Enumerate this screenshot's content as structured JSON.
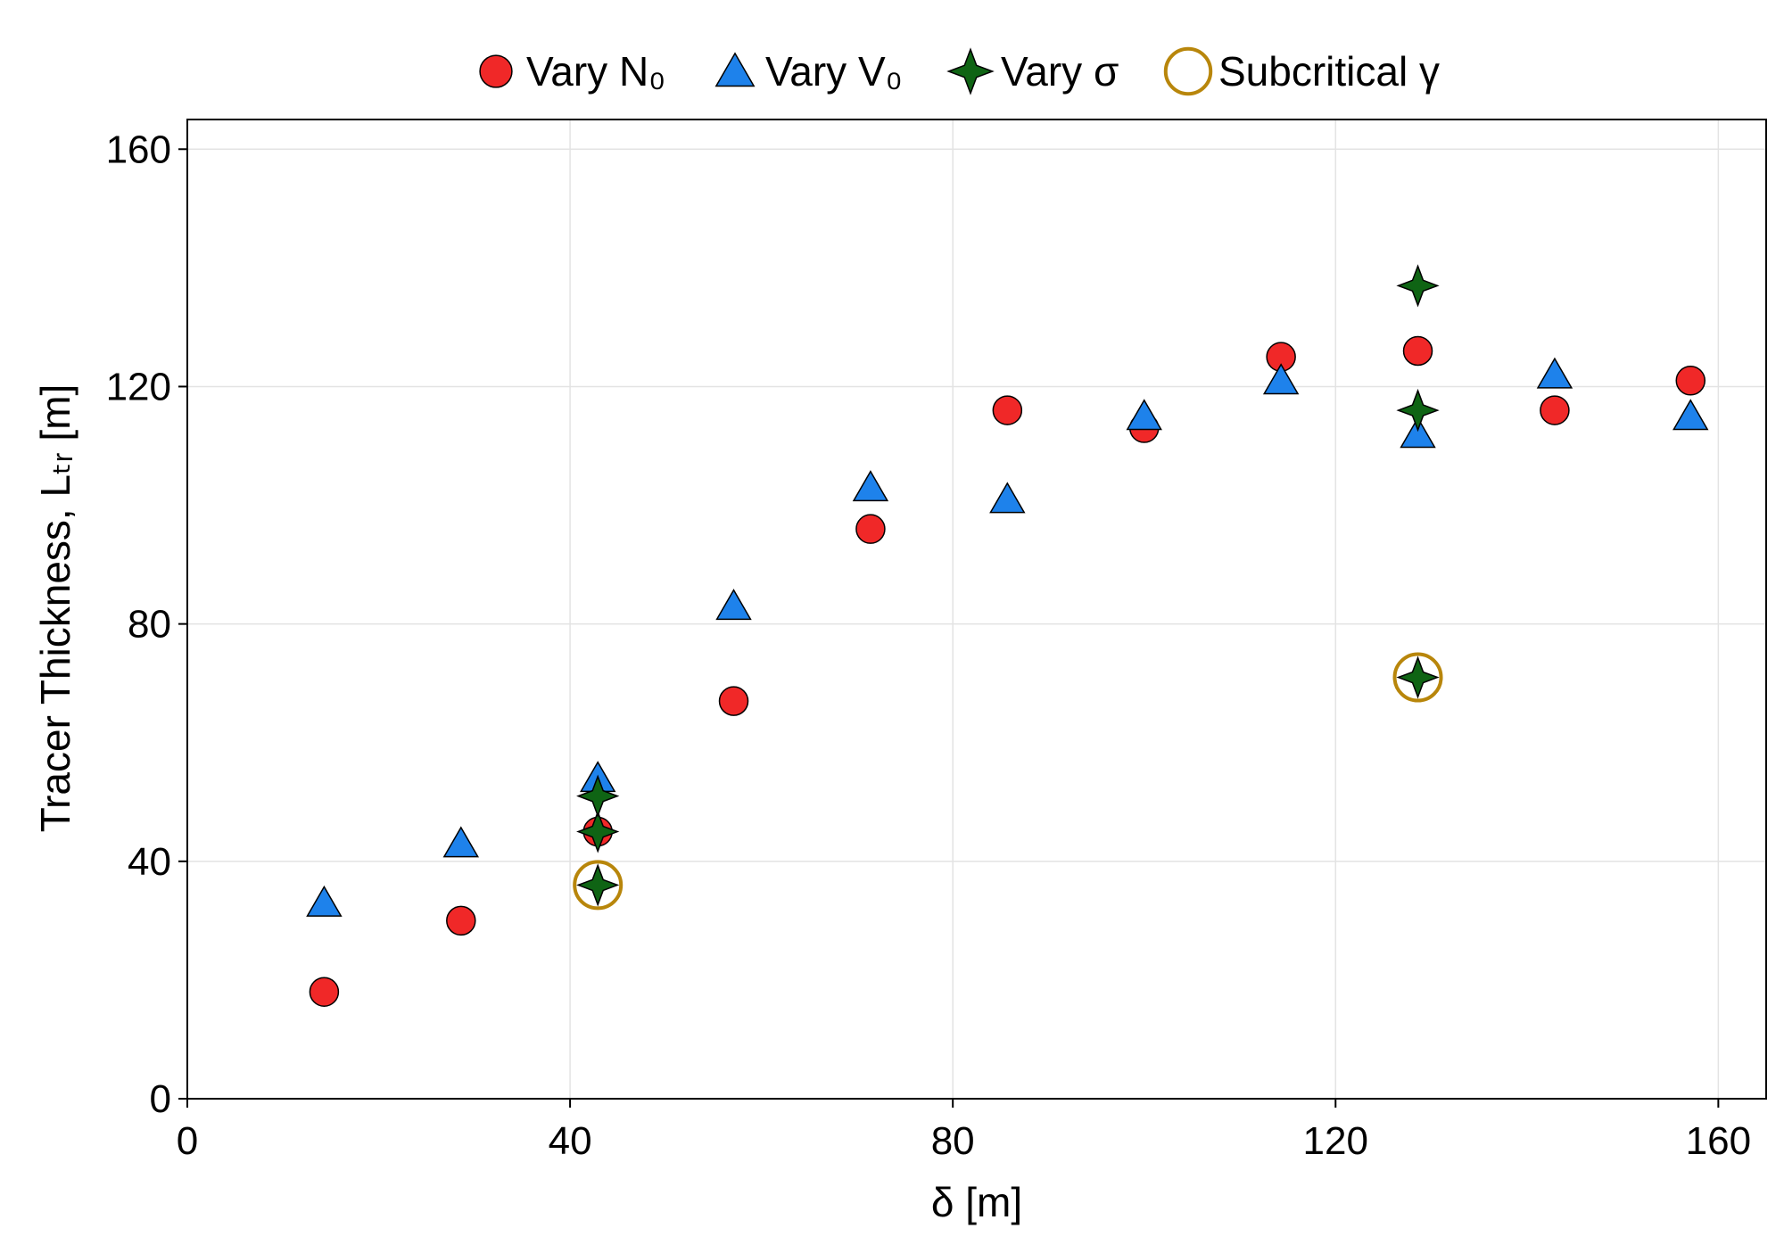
{
  "chart_data": {
    "type": "scatter",
    "title": "",
    "xlabel": "δ [m]",
    "ylabel": "Tracer Thickness, Lₜᵣ [m]",
    "xlim": [
      0,
      165
    ],
    "ylim": [
      0,
      165
    ],
    "xticks": [
      0,
      40,
      80,
      120,
      160
    ],
    "yticks": [
      0,
      40,
      80,
      120,
      160
    ],
    "grid": true,
    "legend_position": "top",
    "colors": {
      "vary_n0": "#f02828",
      "vary_v0": "#1e82eb",
      "vary_sigma": "#0f6414",
      "subcritical": "#b8860b",
      "grid": "#e3e3e3"
    },
    "series": [
      {
        "name": "Vary N₀",
        "marker": "circle",
        "points": [
          {
            "x": 14.3,
            "y": 18
          },
          {
            "x": 28.6,
            "y": 30
          },
          {
            "x": 42.9,
            "y": 45
          },
          {
            "x": 57.1,
            "y": 67
          },
          {
            "x": 71.4,
            "y": 96
          },
          {
            "x": 85.7,
            "y": 116
          },
          {
            "x": 100,
            "y": 113
          },
          {
            "x": 114.3,
            "y": 125
          },
          {
            "x": 128.6,
            "y": 126
          },
          {
            "x": 142.9,
            "y": 116
          },
          {
            "x": 157.1,
            "y": 121
          }
        ]
      },
      {
        "name": "Vary V₀",
        "marker": "triangle",
        "points": [
          {
            "x": 14.3,
            "y": 33
          },
          {
            "x": 28.6,
            "y": 43
          },
          {
            "x": 42.9,
            "y": 54
          },
          {
            "x": 57.1,
            "y": 83
          },
          {
            "x": 71.4,
            "y": 103
          },
          {
            "x": 85.7,
            "y": 101
          },
          {
            "x": 100,
            "y": 115
          },
          {
            "x": 114.3,
            "y": 121
          },
          {
            "x": 128.6,
            "y": 112
          },
          {
            "x": 142.9,
            "y": 122
          },
          {
            "x": 157.1,
            "y": 115
          }
        ]
      },
      {
        "name": "Vary σ",
        "marker": "star4",
        "points": [
          {
            "x": 42.9,
            "y": 36
          },
          {
            "x": 42.9,
            "y": 45
          },
          {
            "x": 42.9,
            "y": 51
          },
          {
            "x": 128.6,
            "y": 71
          },
          {
            "x": 128.6,
            "y": 116
          },
          {
            "x": 128.6,
            "y": 137
          }
        ]
      },
      {
        "name": "Subcritical γ",
        "marker": "ring",
        "points": [
          {
            "x": 42.9,
            "y": 36
          },
          {
            "x": 128.6,
            "y": 71
          }
        ]
      }
    ]
  }
}
